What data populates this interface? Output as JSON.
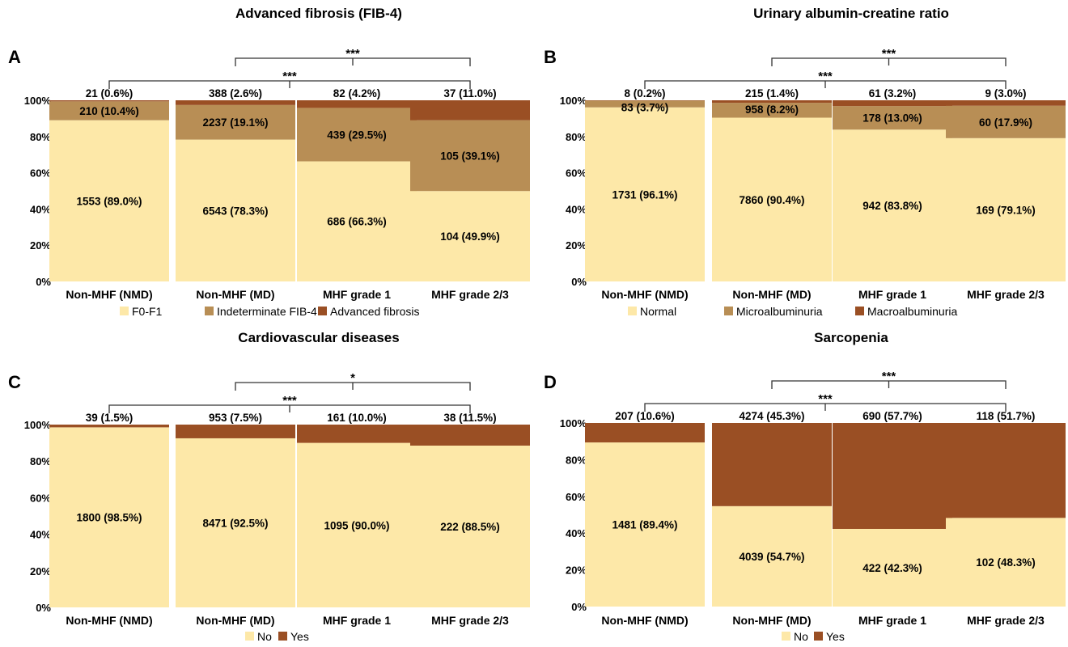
{
  "chart_data": [
    {
      "type": "bar",
      "stacked": true,
      "percent_stacked": true,
      "panel": "A",
      "title": "Advanced fibrosis (FIB-4)",
      "categories": [
        "Non-MHF (NMD)",
        "Non-MHF (MD)",
        "MHF grade 1",
        "MHF grade 2/3"
      ],
      "ylim": [
        0,
        100
      ],
      "yticks": [
        "0%",
        "20%",
        "40%",
        "60%",
        "80%",
        "100%"
      ],
      "legend_position": "bottom",
      "colors": [
        "#FDE8A8",
        "#B88E55",
        "#9A4F24"
      ],
      "series": [
        {
          "name": "F0-F1",
          "values": [
            89.0,
            78.3,
            66.3,
            49.9
          ],
          "labels": [
            "1553 (89.0%)",
            "6543 (78.3%)",
            "686 (66.3%)",
            "104 (49.9%)"
          ]
        },
        {
          "name": "Indeterminate FIB-4",
          "values": [
            10.4,
            19.1,
            29.5,
            39.1
          ],
          "labels": [
            "210 (10.4%)",
            "2237 (19.1%)",
            "439 (29.5%)",
            "105 (39.1%)"
          ]
        },
        {
          "name": "Advanced fibrosis",
          "values": [
            0.6,
            2.6,
            4.2,
            11.0
          ],
          "labels": [
            "21 (0.6%)",
            "388 (2.6%)",
            "82 (4.2%)",
            "37 (11.0%)"
          ]
        }
      ],
      "significance": [
        {
          "from": 1,
          "to": 3,
          "label": "***"
        },
        {
          "from": 0,
          "to": 3,
          "label": "***"
        }
      ]
    },
    {
      "type": "bar",
      "stacked": true,
      "percent_stacked": true,
      "panel": "B",
      "title": "Urinary albumin-creatine ratio",
      "categories": [
        "Non-MHF (NMD)",
        "Non-MHF (MD)",
        "MHF grade 1",
        "MHF grade 2/3"
      ],
      "ylim": [
        0,
        100
      ],
      "yticks": [
        "0%",
        "20%",
        "40%",
        "60%",
        "80%",
        "100%"
      ],
      "legend_position": "bottom",
      "colors": [
        "#FDE8A8",
        "#B88E55",
        "#9A4F24"
      ],
      "series": [
        {
          "name": "Normal",
          "values": [
            96.1,
            90.4,
            83.8,
            79.1
          ],
          "labels": [
            "1731 (96.1%)",
            "7860 (90.4%)",
            "942 (83.8%)",
            "169 (79.1%)"
          ]
        },
        {
          "name": "Microalbuminuria",
          "values": [
            3.7,
            8.2,
            13.0,
            17.9
          ],
          "labels": [
            "83 (3.7%)",
            "958 (8.2%)",
            "178 (13.0%)",
            "60 (17.9%)"
          ]
        },
        {
          "name": "Macroalbuminuria",
          "values": [
            0.2,
            1.4,
            3.2,
            3.0
          ],
          "labels": [
            "8 (0.2%)",
            "215 (1.4%)",
            "61 (3.2%)",
            "9 (3.0%)"
          ]
        }
      ],
      "significance": [
        {
          "from": 1,
          "to": 3,
          "label": "***"
        },
        {
          "from": 0,
          "to": 3,
          "label": "***"
        }
      ]
    },
    {
      "type": "bar",
      "stacked": true,
      "percent_stacked": true,
      "panel": "C",
      "title": "Cardiovascular diseases",
      "categories": [
        "Non-MHF (NMD)",
        "Non-MHF (MD)",
        "MHF grade 1",
        "MHF grade 2/3"
      ],
      "ylim": [
        0,
        100
      ],
      "yticks": [
        "0%",
        "20%",
        "40%",
        "60%",
        "80%",
        "100%"
      ],
      "legend_position": "bottom",
      "colors": [
        "#FDE8A8",
        "#9A4F24"
      ],
      "series": [
        {
          "name": "No",
          "values": [
            98.5,
            92.5,
            90.0,
            88.5
          ],
          "labels": [
            "1800 (98.5%)",
            "8471 (92.5%)",
            "1095 (90.0%)",
            "222 (88.5%)"
          ]
        },
        {
          "name": "Yes",
          "values": [
            1.5,
            7.5,
            10.0,
            11.5
          ],
          "labels": [
            "39 (1.5%)",
            "953 (7.5%)",
            "161 (10.0%)",
            "38 (11.5%)"
          ]
        }
      ],
      "significance": [
        {
          "from": 1,
          "to": 3,
          "label": "*"
        },
        {
          "from": 0,
          "to": 3,
          "label": "***"
        }
      ]
    },
    {
      "type": "bar",
      "stacked": true,
      "percent_stacked": true,
      "panel": "D",
      "title": "Sarcopenia",
      "categories": [
        "Non-MHF (NMD)",
        "Non-MHF (MD)",
        "MHF grade 1",
        "MHF grade 2/3"
      ],
      "ylim": [
        0,
        100
      ],
      "yticks": [
        "0%",
        "20%",
        "40%",
        "60%",
        "80%",
        "100%"
      ],
      "legend_position": "bottom",
      "colors": [
        "#FDE8A8",
        "#9A4F24"
      ],
      "series": [
        {
          "name": "No",
          "values": [
            89.4,
            54.7,
            42.3,
            48.3
          ],
          "labels": [
            "1481 (89.4%)",
            "4039 (54.7%)",
            "422 (42.3%)",
            "102 (48.3%)"
          ]
        },
        {
          "name": "Yes",
          "values": [
            10.6,
            45.3,
            57.7,
            51.7
          ],
          "labels": [
            "207 (10.6%)",
            "4274 (45.3%)",
            "690 (57.7%)",
            "118 (51.7%)"
          ]
        }
      ],
      "significance": [
        {
          "from": 1,
          "to": 3,
          "label": "***"
        },
        {
          "from": 0,
          "to": 3,
          "label": "***"
        }
      ]
    }
  ]
}
